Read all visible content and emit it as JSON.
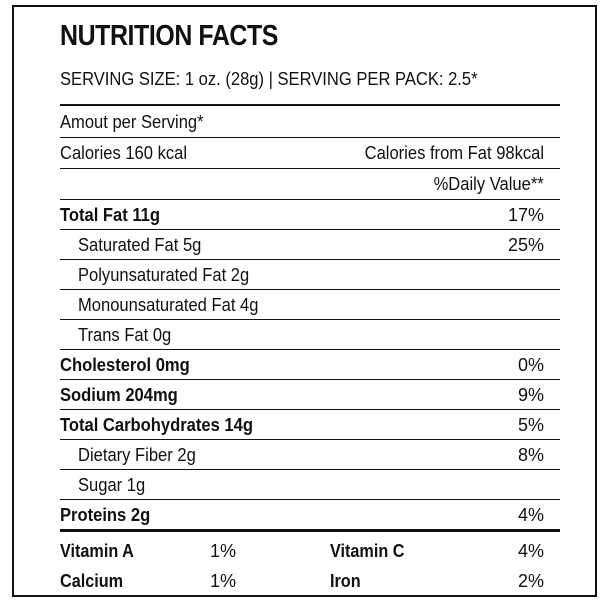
{
  "label": {
    "title": "NUTRITION FACTS",
    "serving": "SERVING SIZE: 1 oz. (28g) | SERVING PER PACK: 2.5*",
    "amount_per_serving": "Amout per Serving*",
    "calories": "Calories 160 kcal",
    "calories_from_fat": "Calories from Fat 98kcal",
    "daily_value_header": "%Daily Value**",
    "nutrients": [
      {
        "label": "Total Fat 11g",
        "dv": "17%",
        "bold": true,
        "indent": false
      },
      {
        "label": "Saturated Fat 5g",
        "dv": "25%",
        "bold": false,
        "indent": true
      },
      {
        "label": "Polyunsaturated Fat 2g",
        "dv": "",
        "bold": false,
        "indent": true
      },
      {
        "label": "Monounsaturated Fat 4g",
        "dv": "",
        "bold": false,
        "indent": true
      },
      {
        "label": "Trans Fat 0g",
        "dv": "",
        "bold": false,
        "indent": true
      },
      {
        "label": "Cholesterol 0mg",
        "dv": "0%",
        "bold": true,
        "indent": false
      },
      {
        "label": "Sodium 204mg",
        "dv": "9%",
        "bold": true,
        "indent": false
      },
      {
        "label": "Total Carbohydrates 14g",
        "dv": "5%",
        "bold": true,
        "indent": false
      },
      {
        "label": "Dietary Fiber 2g",
        "dv": "8%",
        "bold": false,
        "indent": true
      },
      {
        "label": "Sugar 1g",
        "dv": "",
        "bold": false,
        "indent": true
      },
      {
        "label": "Proteins 2g",
        "dv": "4%",
        "bold": true,
        "indent": false
      }
    ],
    "vitamins": [
      {
        "name": "Vitamin A",
        "value": "1%"
      },
      {
        "name": "Vitamin C",
        "value": "4%"
      },
      {
        "name": "Calcium",
        "value": "1%"
      },
      {
        "name": "Iron",
        "value": "2%"
      }
    ]
  }
}
